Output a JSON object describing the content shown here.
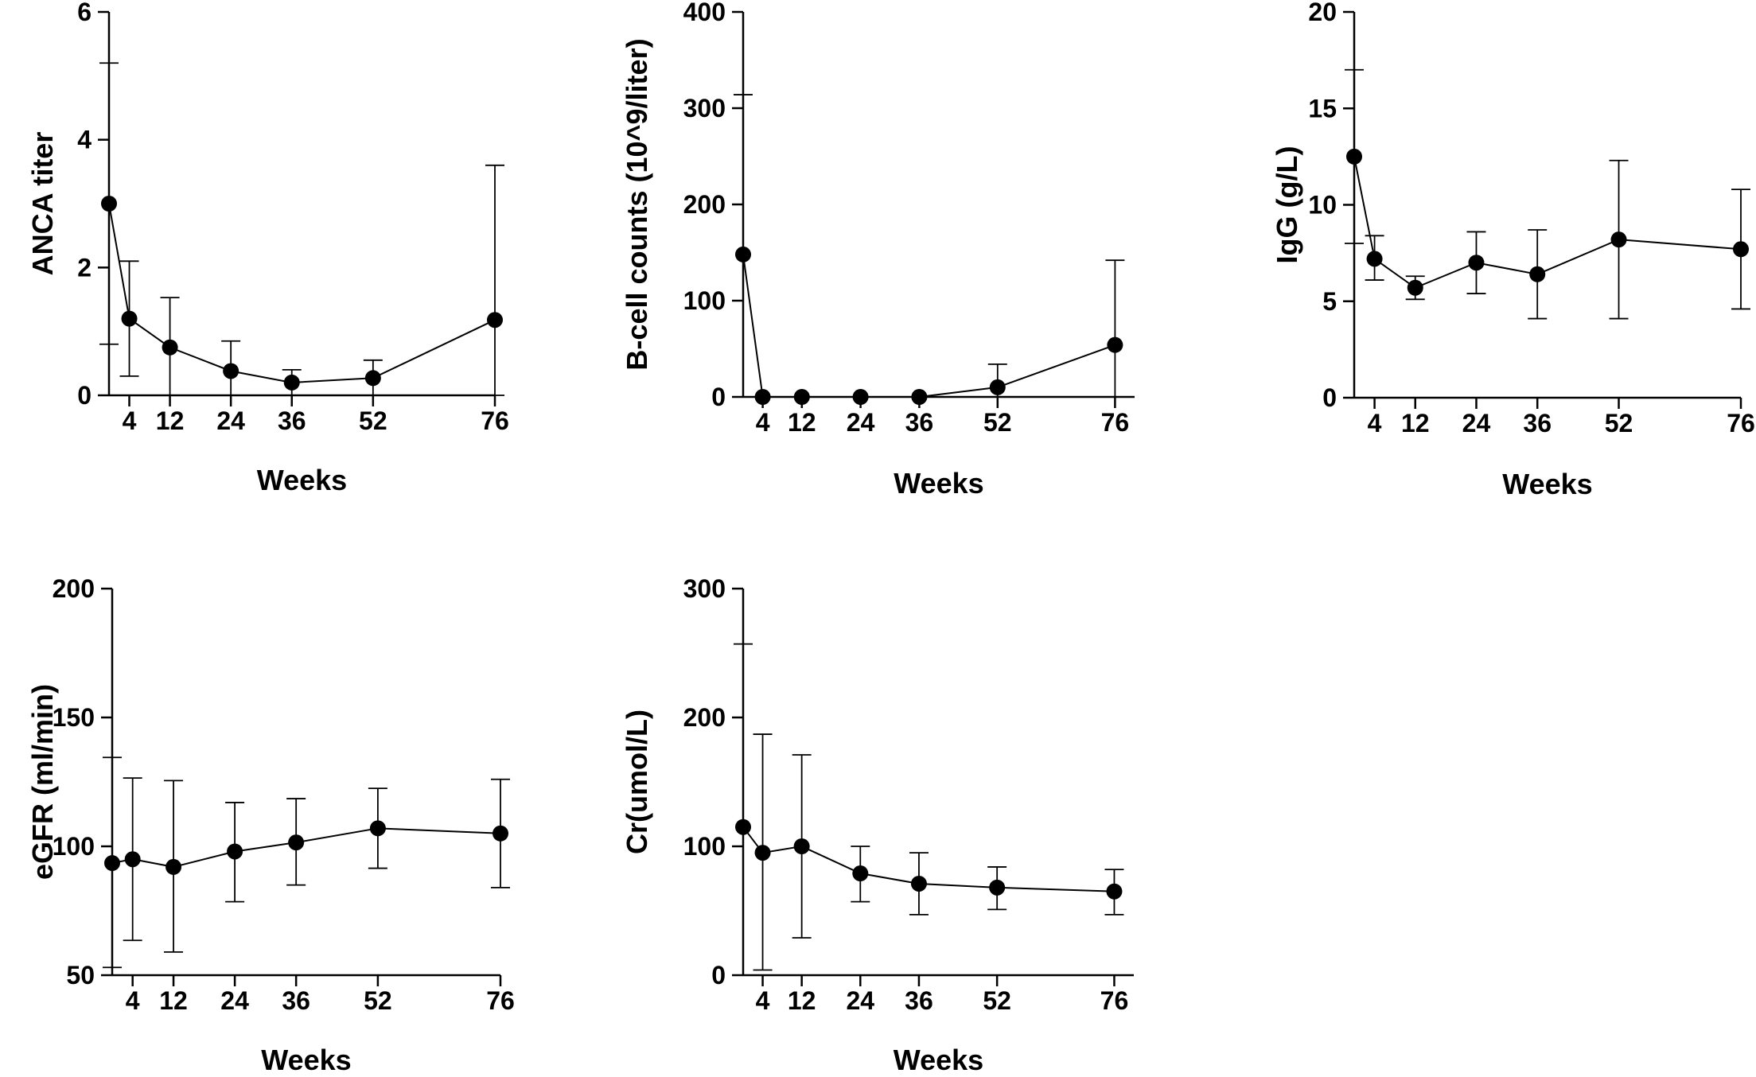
{
  "chart_data": [
    {
      "type": "line",
      "title": "",
      "xlabel": "Weeks",
      "ylabel": "ANCA titer",
      "x": [
        0,
        4,
        12,
        24,
        36,
        52,
        76
      ],
      "xticks": [
        4,
        12,
        24,
        36,
        52,
        76
      ],
      "ylim": [
        0,
        6
      ],
      "yticks": [
        0,
        2,
        4,
        6
      ],
      "series": [
        {
          "name": "ANCA titer",
          "values": [
            3.0,
            1.2,
            0.75,
            0.38,
            0.2,
            0.27,
            1.18
          ],
          "err_low": [
            0.8,
            0.3,
            0.0,
            0.0,
            0.0,
            0.0,
            0.0
          ],
          "err_high": [
            5.2,
            2.1,
            1.53,
            0.85,
            0.4,
            0.55,
            3.6
          ]
        }
      ]
    },
    {
      "type": "line",
      "title": "",
      "xlabel": "Weeks",
      "ylabel": "B-cell counts (10^9/liter)",
      "x": [
        0,
        4,
        12,
        24,
        36,
        52,
        76
      ],
      "xticks": [
        4,
        12,
        24,
        36,
        52,
        76
      ],
      "ylim": [
        0,
        400
      ],
      "yticks": [
        0,
        100,
        200,
        300,
        400
      ],
      "series": [
        {
          "name": "B-cell counts",
          "values": [
            148,
            0,
            0,
            0,
            0,
            10,
            54
          ],
          "err_low": [
            0,
            0,
            0,
            0,
            0,
            0,
            0
          ],
          "err_high": [
            314,
            0,
            0,
            0,
            0,
            34,
            142
          ]
        }
      ]
    },
    {
      "type": "line",
      "title": "",
      "xlabel": "Weeks",
      "ylabel": "IgG (g/L)",
      "x": [
        0,
        4,
        12,
        24,
        36,
        52,
        76
      ],
      "xticks": [
        4,
        12,
        24,
        36,
        52,
        76
      ],
      "ylim": [
        0,
        20
      ],
      "yticks": [
        0,
        5,
        10,
        15,
        20
      ],
      "series": [
        {
          "name": "IgG",
          "values": [
            12.5,
            7.2,
            5.7,
            7.0,
            6.4,
            8.2,
            7.7
          ],
          "err_low": [
            8.0,
            6.1,
            5.1,
            5.4,
            4.1,
            4.1,
            4.6
          ],
          "err_high": [
            17.0,
            8.4,
            6.3,
            8.6,
            8.7,
            12.3,
            10.8
          ]
        }
      ]
    },
    {
      "type": "line",
      "title": "",
      "xlabel": "Weeks",
      "ylabel": "eGFR (ml/min)",
      "x": [
        0,
        4,
        12,
        24,
        36,
        52,
        76
      ],
      "xticks": [
        4,
        12,
        24,
        36,
        52,
        76
      ],
      "ylim": [
        50,
        200
      ],
      "yticks": [
        50,
        100,
        150,
        200
      ],
      "series": [
        {
          "name": "eGFR",
          "values": [
            93.5,
            95,
            92,
            98,
            101.5,
            107,
            105
          ],
          "err_low": [
            53,
            63.5,
            59,
            78.5,
            85,
            91.5,
            84
          ],
          "err_high": [
            134.5,
            126.5,
            125.5,
            117,
            118.5,
            122.5,
            126
          ]
        }
      ]
    },
    {
      "type": "line",
      "title": "",
      "xlabel": "Weeks",
      "ylabel": "Cr(umol/L)",
      "x": [
        0,
        4,
        12,
        24,
        36,
        52,
        76
      ],
      "xticks": [
        4,
        12,
        24,
        36,
        52,
        76
      ],
      "ylim": [
        0,
        300
      ],
      "yticks": [
        0,
        100,
        200,
        300
      ],
      "series": [
        {
          "name": "Cr",
          "values": [
            115,
            95,
            100,
            79,
            71,
            68,
            65
          ],
          "err_low": [
            0,
            4,
            29,
            57,
            47,
            51,
            47
          ],
          "err_high": [
            257,
            187,
            171,
            100,
            95,
            84,
            82
          ]
        }
      ]
    }
  ]
}
